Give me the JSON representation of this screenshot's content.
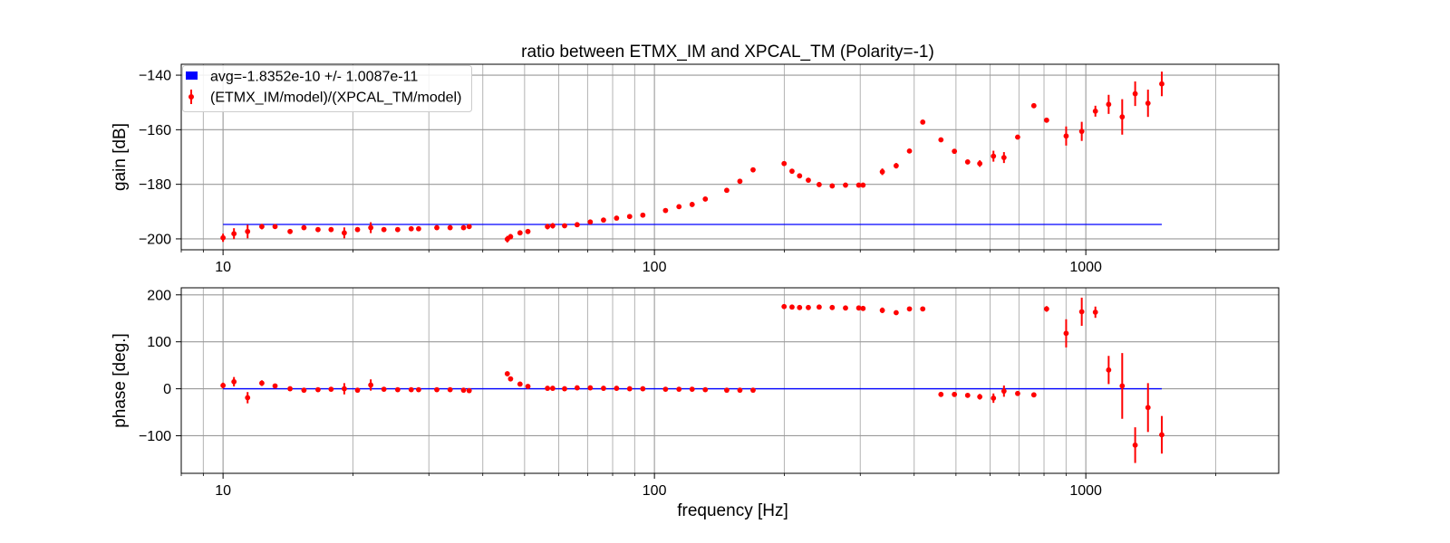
{
  "chart_data": [
    {
      "type": "scatter",
      "title": "ratio between ETMX_IM and XPCAL_TM (Polarity=-1)",
      "xlabel": "",
      "ylabel": "gain [dB]",
      "xscale": "log",
      "xlim": [
        8,
        2800
      ],
      "ylim": [
        -204,
        -136
      ],
      "yticks": [
        -140,
        -160,
        -180,
        -200
      ],
      "xticks": [
        10,
        100,
        1000
      ],
      "grid": true,
      "legend": {
        "placement": "top-left",
        "entries": [
          {
            "label": "avg=-1.8352e-10 +/- 1.0087e-11",
            "color": "#0000ff",
            "marker": "patch"
          },
          {
            "label": "(ETMX_IM/model)/(XPCAL_TM/model)",
            "color": "#ff0000",
            "marker": "errorbar"
          }
        ]
      },
      "series": [
        {
          "name": "avg=-1.8352e-10 +/- 1.0087e-11",
          "type": "line",
          "color": "#0000ff",
          "x": [
            10,
            1500
          ],
          "y": [
            -194.7,
            -194.7
          ]
        },
        {
          "name": "(ETMX_IM/model)/(XPCAL_TM/model)",
          "type": "errorbar",
          "color": "#ff0000",
          "x": [
            10,
            10.6,
            11.4,
            12.3,
            13.2,
            14.3,
            15.4,
            16.6,
            17.8,
            19.1,
            20.5,
            22,
            23.6,
            25.4,
            27.3,
            28.4,
            31.3,
            33.6,
            36.1,
            37.2,
            45.6,
            46.4,
            48.8,
            50.9,
            56.5,
            58.1,
            61.9,
            66.2,
            71,
            76.2,
            81.7,
            87.6,
            94,
            106.1,
            114,
            122.3,
            131.2,
            147.1,
            157.8,
            169.3,
            199.8,
            208.4,
            217,
            227.4,
            240.9,
            258.3,
            277.3,
            297.6,
            304.5,
            337.5,
            363.4,
            390.1,
            418.8,
            461.5,
            495.9,
            532.2,
            567.8,
            610.8,
            646,
            695,
            757.8,
            811.1,
            900.3,
            978.5,
            1052.4,
            1129.7,
            1214.4,
            1301.3,
            1393.5,
            1500
          ],
          "y": [
            -199.6,
            -198.1,
            -197.3,
            -195.5,
            -195.5,
            -197.3,
            -195.9,
            -196.6,
            -196.6,
            -197.8,
            -196.6,
            -195.9,
            -196.6,
            -196.6,
            -196.3,
            -196.3,
            -195.9,
            -195.9,
            -195.9,
            -195.5,
            -200.1,
            -199.2,
            -197.8,
            -197.3,
            -195.5,
            -195.2,
            -195.2,
            -194.8,
            -193.8,
            -193.1,
            -192.4,
            -191.8,
            -191.3,
            -189.6,
            -188.2,
            -187.4,
            -185.4,
            -182.2,
            -178.9,
            -174.7,
            -172.4,
            -175.2,
            -176.9,
            -178.5,
            -180.1,
            -180.6,
            -180.3,
            -180.3,
            -180.3,
            -175.4,
            -173.2,
            -167.8,
            -157.2,
            -163.7,
            -167.9,
            -171.8,
            -172.4,
            -169.7,
            -170.2,
            -162.7,
            -151.2,
            -156.5,
            -162.3,
            -160.6,
            -153.2,
            -150.7,
            -155.3,
            -146.8,
            -150.3,
            -143.2
          ],
          "yerr": [
            1.5,
            2.0,
            2.5,
            1.0,
            0.8,
            0.8,
            0.8,
            0.8,
            0.8,
            2.0,
            0.8,
            2.0,
            0.8,
            0.8,
            0.8,
            0.8,
            0.8,
            0.8,
            0.8,
            0.8,
            1.2,
            1.0,
            0.8,
            0.8,
            1.0,
            1.0,
            0.8,
            0.8,
            0.8,
            0.8,
            0.8,
            0.8,
            0.8,
            0.8,
            0.8,
            0.8,
            0.8,
            0.8,
            0.8,
            0.8,
            0.8,
            0.8,
            0.8,
            0.8,
            0.8,
            0.8,
            0.8,
            0.8,
            0.8,
            1.2,
            1.0,
            0.8,
            0.8,
            0.8,
            0.8,
            0.8,
            1.2,
            2.0,
            2.0,
            0.8,
            0.8,
            0.8,
            3.5,
            3.5,
            2.0,
            3.5,
            6.5,
            4.5,
            5.0,
            4.5
          ]
        }
      ]
    },
    {
      "type": "scatter",
      "xlabel": "frequency [Hz]",
      "ylabel": "phase [deg.]",
      "xscale": "log",
      "xlim": [
        8,
        2800
      ],
      "ylim": [
        -180,
        215
      ],
      "yticks": [
        200,
        100,
        0,
        -100
      ],
      "xticks": [
        10,
        100,
        1000
      ],
      "grid": true,
      "series": [
        {
          "type": "line",
          "color": "#0000ff",
          "x": [
            10,
            1500
          ],
          "y": [
            0,
            0
          ]
        },
        {
          "type": "errorbar",
          "color": "#ff0000",
          "x": [
            10,
            10.6,
            11.4,
            12.3,
            13.2,
            14.3,
            15.4,
            16.6,
            17.8,
            19.1,
            20.5,
            22,
            23.6,
            25.4,
            27.3,
            28.4,
            31.3,
            33.6,
            36.1,
            37.2,
            45.6,
            46.4,
            48.8,
            50.9,
            56.5,
            58.1,
            61.9,
            66.2,
            71,
            76.2,
            81.7,
            87.6,
            94,
            106.1,
            114,
            122.3,
            131.2,
            147.1,
            157.8,
            169.3,
            199.8,
            208.4,
            217,
            227.4,
            240.9,
            258.3,
            277.3,
            297.6,
            304.5,
            337.5,
            363.4,
            390.1,
            418.8,
            461.5,
            495.9,
            532.2,
            567.8,
            610.8,
            646,
            695,
            757.8,
            811.1,
            900.3,
            978.5,
            1052.4,
            1129.7,
            1214.4,
            1301.3,
            1393.5,
            1500
          ],
          "y": [
            7,
            15,
            -19,
            12,
            6,
            0,
            -3,
            -2,
            -1,
            0,
            -3,
            8,
            -1,
            -2,
            -2,
            -2,
            -2,
            -2,
            -3,
            -4,
            32,
            21,
            10,
            5,
            1,
            1,
            0,
            2,
            2,
            1,
            1,
            0,
            0,
            -1,
            -1,
            -1,
            -2,
            -3,
            -3,
            -3,
            175,
            174,
            173,
            173,
            174,
            173,
            172,
            172,
            171,
            167,
            162,
            170,
            170,
            -12,
            -12,
            -14,
            -17,
            -20,
            -5,
            -10,
            -13,
            170,
            118,
            164,
            163,
            40,
            6,
            -120,
            -40,
            -98
          ],
          "yerr": [
            6,
            10,
            12,
            6,
            5,
            3,
            3,
            3,
            3,
            12,
            3,
            12,
            3,
            3,
            3,
            3,
            3,
            3,
            3,
            3,
            5,
            4,
            3,
            3,
            3,
            3,
            3,
            3,
            3,
            3,
            3,
            3,
            3,
            3,
            3,
            3,
            3,
            3,
            3,
            3,
            3,
            3,
            3,
            3,
            3,
            3,
            3,
            3,
            3,
            6,
            4,
            3,
            3,
            3,
            3,
            3,
            6,
            10,
            12,
            4,
            3,
            6,
            30,
            30,
            12,
            30,
            70,
            38,
            52,
            40
          ]
        }
      ]
    }
  ]
}
